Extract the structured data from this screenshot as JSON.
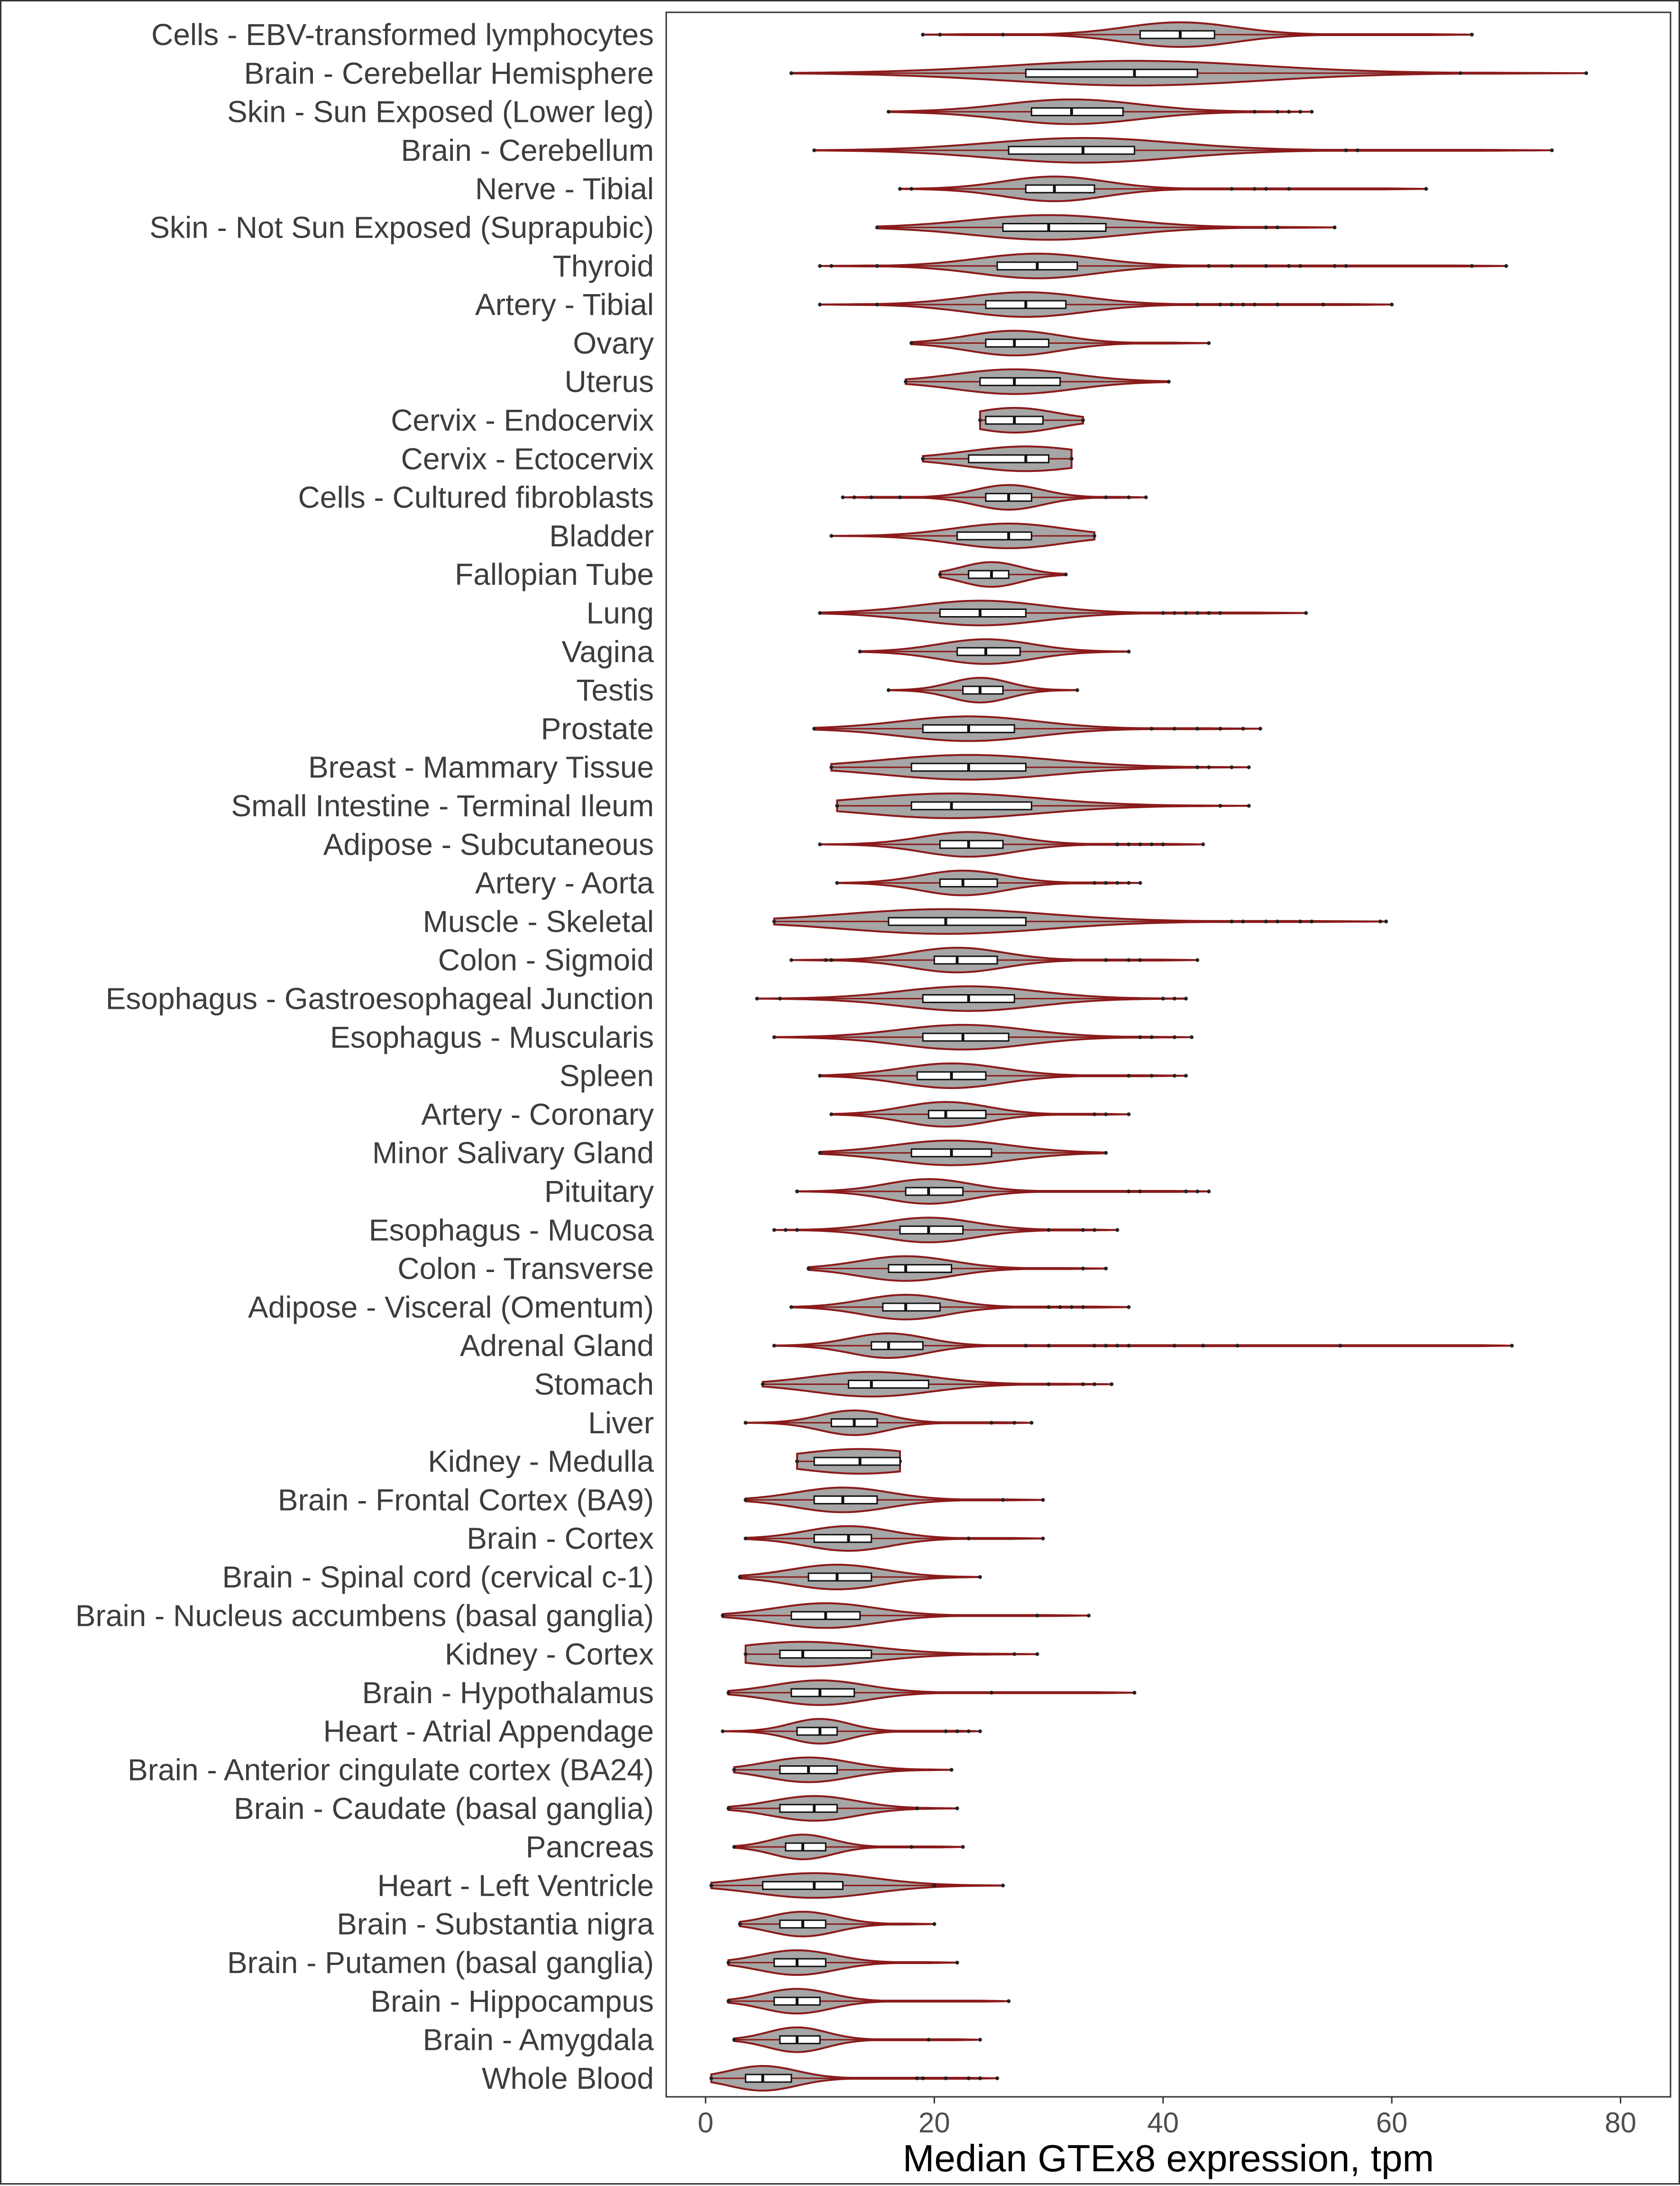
{
  "chart_data": {
    "type": "violin",
    "orientation": "horizontal",
    "xlabel": "Median GTEx8 expression, tpm",
    "ylabel": "",
    "xlim": [
      -3,
      81
    ],
    "xticks": [
      0,
      20,
      40,
      60,
      80
    ],
    "grid": false,
    "legend": "none",
    "colors": {
      "violin_fill": "#a6a6a6",
      "violin_stroke": "#8b1a1a",
      "box_fill": "#ffffff",
      "box_stroke": "#111111",
      "outlier": "#222222"
    },
    "categories": [
      {
        "tissue": "Cells - EBV-transformed lymphocytes",
        "min": 19,
        "q1": 38,
        "median": 41.5,
        "q3": 44.5,
        "max": 67,
        "outliers": [
          20.5,
          26
        ]
      },
      {
        "tissue": "Brain - Cerebellar Hemisphere",
        "min": 7.5,
        "q1": 28,
        "median": 37.5,
        "q3": 43,
        "max": 77,
        "outliers": [
          66
        ]
      },
      {
        "tissue": "Skin - Sun Exposed (Lower leg)",
        "min": 16,
        "q1": 28.5,
        "median": 32,
        "q3": 36.5,
        "max": 53,
        "outliers": [
          48,
          50,
          51,
          52
        ]
      },
      {
        "tissue": "Brain - Cerebellum",
        "min": 9.5,
        "q1": 26.5,
        "median": 33,
        "q3": 37.5,
        "max": 74,
        "outliers": [
          56,
          57
        ]
      },
      {
        "tissue": "Nerve - Tibial",
        "min": 17,
        "q1": 28,
        "median": 30.5,
        "q3": 34,
        "max": 63,
        "outliers": [
          18,
          46,
          48,
          49,
          51
        ]
      },
      {
        "tissue": "Skin - Not Sun Exposed (Suprapubic)",
        "min": 15,
        "q1": 26,
        "median": 30,
        "q3": 35,
        "max": 55,
        "outliers": [
          49,
          50
        ]
      },
      {
        "tissue": "Thyroid",
        "min": 10,
        "q1": 25.5,
        "median": 29,
        "q3": 32.5,
        "max": 70,
        "outliers": [
          11,
          15,
          44,
          46,
          49,
          51,
          52,
          55,
          56,
          67
        ]
      },
      {
        "tissue": "Artery - Tibial",
        "min": 10,
        "q1": 24.5,
        "median": 28,
        "q3": 31.5,
        "max": 60,
        "outliers": [
          15,
          43,
          45,
          46,
          47,
          48,
          50,
          54
        ]
      },
      {
        "tissue": "Ovary",
        "min": 18,
        "q1": 24.5,
        "median": 27,
        "q3": 30,
        "max": 44,
        "outliers": []
      },
      {
        "tissue": "Uterus",
        "min": 17.5,
        "q1": 24,
        "median": 27,
        "q3": 31,
        "max": 40.5,
        "outliers": []
      },
      {
        "tissue": "Cervix - Endocervix",
        "min": 24,
        "q1": 24.5,
        "median": 27,
        "q3": 29.5,
        "max": 33,
        "outliers": []
      },
      {
        "tissue": "Cervix - Ectocervix",
        "min": 19,
        "q1": 23,
        "median": 28,
        "q3": 30,
        "max": 32,
        "outliers": []
      },
      {
        "tissue": "Cells - Cultured fibroblasts",
        "min": 12,
        "q1": 24.5,
        "median": 26.5,
        "q3": 28.5,
        "max": 38.5,
        "outliers": [
          13,
          14.5,
          17,
          35,
          37
        ]
      },
      {
        "tissue": "Bladder",
        "min": 11,
        "q1": 22,
        "median": 26.5,
        "q3": 28.5,
        "max": 34,
        "outliers": []
      },
      {
        "tissue": "Fallopian Tube",
        "min": 20.5,
        "q1": 23,
        "median": 25,
        "q3": 26.5,
        "max": 31.5,
        "outliers": []
      },
      {
        "tissue": "Lung",
        "min": 10,
        "q1": 20.5,
        "median": 24,
        "q3": 28,
        "max": 52.5,
        "outliers": [
          40,
          41,
          42,
          43,
          44,
          45
        ]
      },
      {
        "tissue": "Vagina",
        "min": 13.5,
        "q1": 22,
        "median": 24.5,
        "q3": 27.5,
        "max": 37,
        "outliers": []
      },
      {
        "tissue": "Testis",
        "min": 16,
        "q1": 22.5,
        "median": 24,
        "q3": 26,
        "max": 32.5,
        "outliers": []
      },
      {
        "tissue": "Prostate",
        "min": 9.5,
        "q1": 19,
        "median": 23,
        "q3": 27,
        "max": 48.5,
        "outliers": [
          39,
          41,
          43,
          45,
          47
        ]
      },
      {
        "tissue": "Breast - Mammary Tissue",
        "min": 11,
        "q1": 18,
        "median": 23,
        "q3": 28,
        "max": 47.5,
        "outliers": [
          43,
          44,
          46
        ]
      },
      {
        "tissue": "Small Intestine - Terminal Ileum",
        "min": 11.5,
        "q1": 18,
        "median": 21.5,
        "q3": 28.5,
        "max": 47.5,
        "outliers": [
          45
        ]
      },
      {
        "tissue": "Adipose - Subcutaneous",
        "min": 10,
        "q1": 20.5,
        "median": 23,
        "q3": 26,
        "max": 43.5,
        "outliers": [
          36,
          37,
          38,
          39,
          40
        ]
      },
      {
        "tissue": "Artery - Aorta",
        "min": 11.5,
        "q1": 20.5,
        "median": 22.5,
        "q3": 25.5,
        "max": 38,
        "outliers": [
          34,
          35,
          36,
          37
        ]
      },
      {
        "tissue": "Muscle - Skeletal",
        "min": 6,
        "q1": 16,
        "median": 21,
        "q3": 28,
        "max": 59.5,
        "outliers": [
          46,
          47,
          49,
          50,
          52,
          53,
          59
        ]
      },
      {
        "tissue": "Colon - Sigmoid",
        "min": 7.5,
        "q1": 20,
        "median": 22,
        "q3": 25.5,
        "max": 43,
        "outliers": [
          10.5,
          11,
          35,
          37,
          38
        ]
      },
      {
        "tissue": "Esophagus - Gastroesophageal Junction",
        "min": 4.5,
        "q1": 19,
        "median": 23,
        "q3": 27,
        "max": 42,
        "outliers": [
          6.5,
          40,
          41
        ]
      },
      {
        "tissue": "Esophagus - Muscularis",
        "min": 6,
        "q1": 19,
        "median": 22.5,
        "q3": 26.5,
        "max": 42.5,
        "outliers": [
          38,
          39,
          41
        ]
      },
      {
        "tissue": "Spleen",
        "min": 10,
        "q1": 18.5,
        "median": 21.5,
        "q3": 24.5,
        "max": 42,
        "outliers": [
          37,
          39,
          41
        ]
      },
      {
        "tissue": "Artery - Coronary",
        "min": 11,
        "q1": 19.5,
        "median": 21,
        "q3": 24.5,
        "max": 37,
        "outliers": [
          34,
          35
        ]
      },
      {
        "tissue": "Minor Salivary Gland",
        "min": 10,
        "q1": 18,
        "median": 21.5,
        "q3": 25,
        "max": 35,
        "outliers": []
      },
      {
        "tissue": "Pituitary",
        "min": 8,
        "q1": 17.5,
        "median": 19.5,
        "q3": 22.5,
        "max": 44,
        "outliers": [
          37,
          38,
          42,
          43
        ]
      },
      {
        "tissue": "Esophagus - Mucosa",
        "min": 6,
        "q1": 17,
        "median": 19.5,
        "q3": 22.5,
        "max": 36,
        "outliers": [
          7,
          8,
          30,
          33,
          34
        ]
      },
      {
        "tissue": "Colon - Transverse",
        "min": 9,
        "q1": 16,
        "median": 17.5,
        "q3": 21.5,
        "max": 35,
        "outliers": [
          33
        ]
      },
      {
        "tissue": "Adipose - Visceral (Omentum)",
        "min": 7.5,
        "q1": 15.5,
        "median": 17.5,
        "q3": 20.5,
        "max": 37,
        "outliers": [
          30,
          31,
          32,
          33
        ]
      },
      {
        "tissue": "Adrenal Gland",
        "min": 6,
        "q1": 14.5,
        "median": 16,
        "q3": 19,
        "max": 70.5,
        "outliers": [
          28,
          30,
          34,
          35,
          36,
          37,
          41,
          43.5,
          46.5,
          55.5
        ]
      },
      {
        "tissue": "Stomach",
        "min": 5,
        "q1": 12.5,
        "median": 14.5,
        "q3": 19.5,
        "max": 35.5,
        "outliers": [
          30,
          33,
          34
        ]
      },
      {
        "tissue": "Liver",
        "min": 3.5,
        "q1": 11,
        "median": 13,
        "q3": 15,
        "max": 28.5,
        "outliers": [
          25,
          27
        ]
      },
      {
        "tissue": "Kidney - Medulla",
        "min": 8,
        "q1": 9.5,
        "median": 13.5,
        "q3": 17,
        "max": 17,
        "outliers": []
      },
      {
        "tissue": "Brain - Frontal Cortex (BA9)",
        "min": 3.5,
        "q1": 9.5,
        "median": 12,
        "q3": 15,
        "max": 29.5,
        "outliers": [
          26
        ]
      },
      {
        "tissue": "Brain - Cortex",
        "min": 3.5,
        "q1": 9.5,
        "median": 12.5,
        "q3": 14.5,
        "max": 29.5,
        "outliers": [
          23
        ]
      },
      {
        "tissue": "Brain - Spinal cord (cervical c-1)",
        "min": 3,
        "q1": 9,
        "median": 11.5,
        "q3": 14.5,
        "max": 24,
        "outliers": []
      },
      {
        "tissue": "Brain - Nucleus accumbens (basal ganglia)",
        "min": 1.5,
        "q1": 7.5,
        "median": 10.5,
        "q3": 13.5,
        "max": 33.5,
        "outliers": [
          29
        ]
      },
      {
        "tissue": "Kidney - Cortex",
        "min": 3.5,
        "q1": 6.5,
        "median": 8.5,
        "q3": 14.5,
        "max": 29,
        "outliers": [
          27
        ]
      },
      {
        "tissue": "Brain - Hypothalamus",
        "min": 2,
        "q1": 7.5,
        "median": 10,
        "q3": 13,
        "max": 37.5,
        "outliers": [
          25
        ]
      },
      {
        "tissue": "Heart - Atrial Appendage",
        "min": 1.5,
        "q1": 8,
        "median": 10,
        "q3": 11.5,
        "max": 24,
        "outliers": [
          21,
          22,
          23
        ]
      },
      {
        "tissue": "Brain - Anterior cingulate cortex (BA24)",
        "min": 2.5,
        "q1": 6.5,
        "median": 9,
        "q3": 11.5,
        "max": 21.5,
        "outliers": []
      },
      {
        "tissue": "Brain - Caudate (basal ganglia)",
        "min": 2,
        "q1": 6.5,
        "median": 9.5,
        "q3": 11.5,
        "max": 22,
        "outliers": [
          18.5
        ]
      },
      {
        "tissue": "Pancreas",
        "min": 2.5,
        "q1": 7,
        "median": 8.5,
        "q3": 10.5,
        "max": 22.5,
        "outliers": [
          18
        ]
      },
      {
        "tissue": "Heart - Left Ventricle",
        "min": 0.5,
        "q1": 5,
        "median": 9.5,
        "q3": 12,
        "max": 26,
        "outliers": [
          20
        ]
      },
      {
        "tissue": "Brain - Substantia nigra",
        "min": 3,
        "q1": 6.5,
        "median": 8.5,
        "q3": 10.5,
        "max": 20,
        "outliers": []
      },
      {
        "tissue": "Brain - Putamen (basal ganglia)",
        "min": 2,
        "q1": 6,
        "median": 8,
        "q3": 10.5,
        "max": 22,
        "outliers": []
      },
      {
        "tissue": "Brain - Hippocampus",
        "min": 2,
        "q1": 6,
        "median": 8,
        "q3": 10,
        "max": 26.5,
        "outliers": []
      },
      {
        "tissue": "Brain - Amygdala",
        "min": 2.5,
        "q1": 6.5,
        "median": 8,
        "q3": 10,
        "max": 24,
        "outliers": [
          19.5
        ]
      },
      {
        "tissue": "Whole Blood",
        "min": 0.5,
        "q1": 3.5,
        "median": 5,
        "q3": 7.5,
        "max": 25.5,
        "outliers": [
          18.5,
          19,
          21,
          23,
          24
        ]
      }
    ]
  }
}
